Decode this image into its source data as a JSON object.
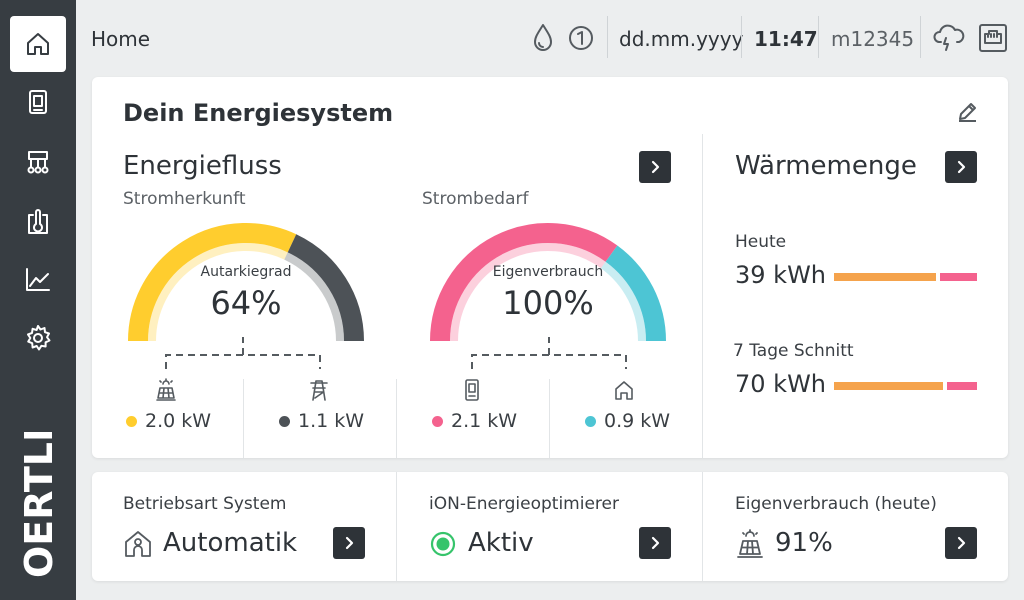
{
  "sidebar": {
    "items": [
      {
        "icon": "home-icon"
      },
      {
        "icon": "device-icon"
      },
      {
        "icon": "system-icon"
      },
      {
        "icon": "thermometer-icon"
      },
      {
        "icon": "chart-icon"
      },
      {
        "icon": "gear-icon"
      }
    ],
    "logo": "OERTLI"
  },
  "topbar": {
    "title": "Home",
    "date": "dd.mm.yyyy",
    "time": "11:47",
    "device_id": "m12345",
    "icons": [
      "water-drop-icon",
      "info-one-icon",
      "cloud-connection-icon",
      "ethernet-icon"
    ]
  },
  "energy": {
    "title": "Dein Energiesystem",
    "flow_title": "Energiefluss",
    "origin": {
      "title": "Stromherkunft",
      "label": "Autarkiegrad",
      "value": "64%",
      "fraction": 0.64,
      "left_value": "2.0 kW",
      "right_value": "1.1 kW",
      "left_color": "#ffcd2e",
      "right_color": "#4d5257"
    },
    "demand": {
      "title": "Strombedarf",
      "label": "Eigenverbrauch",
      "value": "100%",
      "fraction": 0.7,
      "left_value": "2.1 kW",
      "right_value": "0.9 kW",
      "left_color": "#f4628e",
      "right_color": "#4dc5d4"
    }
  },
  "heat": {
    "title": "Wärmemenge",
    "today_label": "Heute",
    "today_value": "39 kWh",
    "today_fraction": 0.74,
    "avg_label": "7 Tage Schnitt",
    "avg_value": "70 kWh",
    "avg_fraction": 0.79,
    "orange": "#f5a34c",
    "pink": "#f4628e"
  },
  "bottom": {
    "mode_label": "Betriebsart System",
    "mode_value": "Automatik",
    "optimizer_label": "iON-Energieoptimierer",
    "optimizer_value": "Aktiv",
    "selfuse_label": "Eigenverbrauch (heute)",
    "selfuse_value": "91%"
  }
}
